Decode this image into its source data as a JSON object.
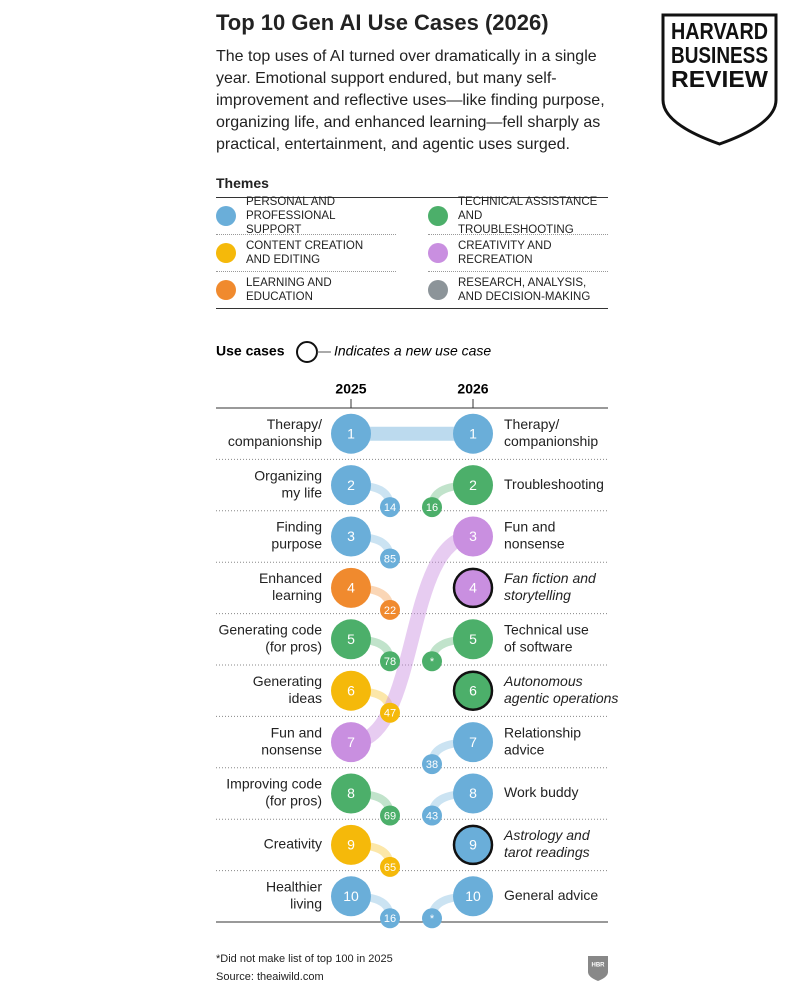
{
  "header": {
    "title": "Top 10 Gen AI Use Cases (2026)",
    "subtitle": "The top uses of AI turned over dramatically in a single year. Emotional support endured, but many self-improvement and reflective uses—like finding purpose, organizing life, and enhanced learning—fell sharply as practical, entertainment, and agentic uses surged.",
    "logo": [
      "HARVARD",
      "BUSINESS",
      "REVIEW"
    ]
  },
  "themes": {
    "title": "Themes",
    "items": [
      {
        "name": "PERSONAL AND PROFESSIONAL SUPPORT",
        "color": "#6aaed9"
      },
      {
        "name": "TECHNICAL ASSISTANCE AND TROUBLESHOOTING",
        "color": "#4caf6a"
      },
      {
        "name": "CONTENT CREATION AND EDITING",
        "color": "#f5b90a"
      },
      {
        "name": "CREATIVITY AND RECREATION",
        "color": "#c98fe0"
      },
      {
        "name": "LEARNING AND EDUCATION",
        "color": "#f08a2e"
      },
      {
        "name": "RESEARCH, ANALYSIS, AND DECISION-MAKING",
        "color": "#8c9499"
      }
    ]
  },
  "legend": {
    "title": "Use cases",
    "note": "Indicates a new use case"
  },
  "chart_data": {
    "type": "bump",
    "columns": [
      {
        "year": "2025",
        "items": [
          {
            "label": [
              "Therapy/",
              "companionship"
            ],
            "rank": 1,
            "color": "#6aaed9",
            "other_rank": 1
          },
          {
            "label": [
              "Organizing",
              "my life"
            ],
            "rank": 2,
            "color": "#6aaed9",
            "other_rank": 14
          },
          {
            "label": [
              "Finding",
              "purpose"
            ],
            "rank": 3,
            "color": "#6aaed9",
            "other_rank": 85
          },
          {
            "label": [
              "Enhanced",
              "learning"
            ],
            "rank": 4,
            "color": "#f08a2e",
            "other_rank": 22
          },
          {
            "label": [
              "Generating code",
              "(for pros)"
            ],
            "rank": 5,
            "color": "#4caf6a",
            "other_rank": 78
          },
          {
            "label": [
              "Generating",
              "ideas"
            ],
            "rank": 6,
            "color": "#f5b90a",
            "other_rank": 47
          },
          {
            "label": [
              "Fun and",
              "nonsense"
            ],
            "rank": 7,
            "color": "#c98fe0",
            "other_rank": 3
          },
          {
            "label": [
              "Improving code",
              "(for pros)"
            ],
            "rank": 8,
            "color": "#4caf6a",
            "other_rank": 69
          },
          {
            "label": [
              "Creativity"
            ],
            "rank": 9,
            "color": "#f5b90a",
            "other_rank": 65
          },
          {
            "label": [
              "Healthier",
              "living"
            ],
            "rank": 10,
            "color": "#6aaed9",
            "other_rank": 16
          }
        ]
      },
      {
        "year": "2026",
        "items": [
          {
            "label": [
              "Therapy/",
              "companionship"
            ],
            "rank": 1,
            "color": "#6aaed9",
            "other_rank": 1
          },
          {
            "label": [
              "Troubleshooting"
            ],
            "rank": 2,
            "color": "#4caf6a",
            "other_rank": 16
          },
          {
            "label": [
              "Fun and",
              "nonsense"
            ],
            "rank": 3,
            "color": "#c98fe0",
            "other_rank": 7
          },
          {
            "label": [
              "Fan fiction and",
              "storytelling"
            ],
            "rank": 4,
            "color": "#c98fe0",
            "new": true
          },
          {
            "label": [
              "Technical use",
              "of software"
            ],
            "rank": 5,
            "color": "#4caf6a",
            "other_rank": "*"
          },
          {
            "label": [
              "Autonomous",
              "agentic operations"
            ],
            "rank": 6,
            "color": "#4caf6a",
            "new": true
          },
          {
            "label": [
              "Relationship",
              "advice"
            ],
            "rank": 7,
            "color": "#6aaed9",
            "other_rank": 38
          },
          {
            "label": [
              "Work buddy"
            ],
            "rank": 8,
            "color": "#6aaed9",
            "other_rank": 43
          },
          {
            "label": [
              "Astrology and",
              "tarot readings"
            ],
            "rank": 9,
            "color": "#6aaed9",
            "new": true
          },
          {
            "label": [
              "General advice"
            ],
            "rank": 10,
            "color": "#6aaed9",
            "other_rank": "*"
          }
        ]
      }
    ]
  },
  "footer": {
    "note": "*Did not make list of top 100 in 2025",
    "source": "Source: theaiwild.com",
    "badge": "HBR"
  }
}
